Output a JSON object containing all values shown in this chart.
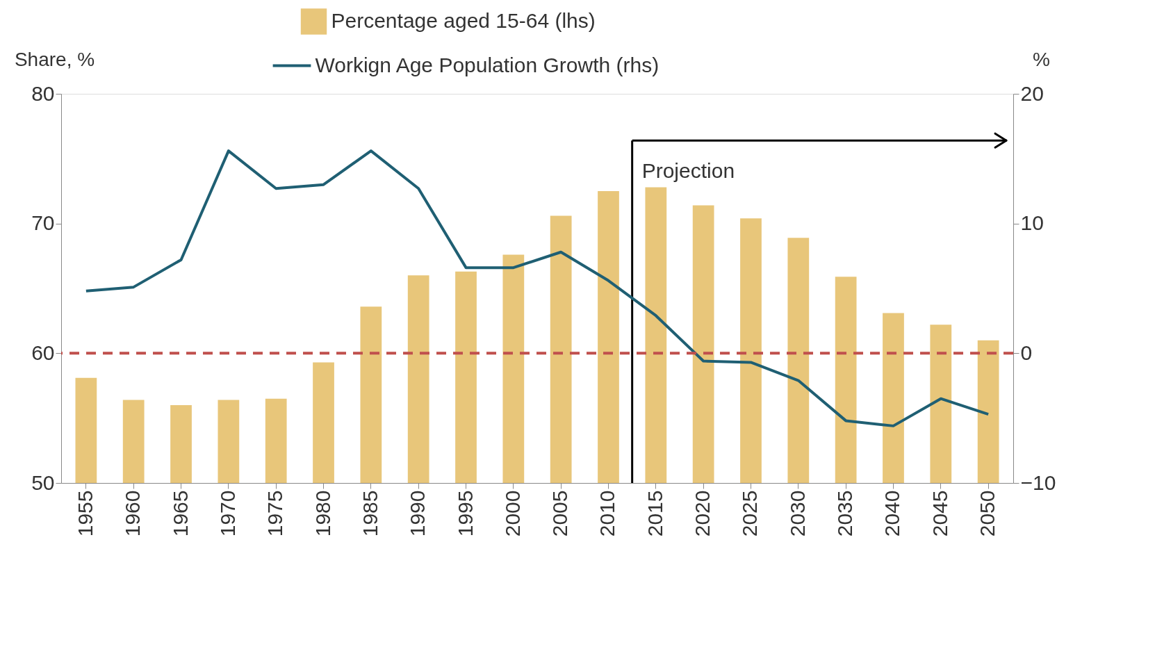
{
  "chart_data": {
    "type": "bar",
    "ylabel": "Share, %",
    "y2label": "%",
    "categories": [
      "1955",
      "1960",
      "1965",
      "1970",
      "1975",
      "1980",
      "1985",
      "1990",
      "1995",
      "2000",
      "2005",
      "2010",
      "2015",
      "2020",
      "2025",
      "2030",
      "2035",
      "2040",
      "2045",
      "2050"
    ],
    "series": [
      {
        "name": "Percentage aged 15-64 (lhs)",
        "type": "bar",
        "color": "#e8c67a",
        "values": [
          58.1,
          56.4,
          56.0,
          56.4,
          56.5,
          59.3,
          63.6,
          66.0,
          66.3,
          67.6,
          70.6,
          72.5,
          72.8,
          71.4,
          70.4,
          68.9,
          65.9,
          63.1,
          62.2,
          61.0
        ]
      },
      {
        "name": "Workign Age Population Growth (rhs)",
        "type": "line",
        "axis": "y2",
        "color": "#1f5f73",
        "values": [
          4.8,
          5.1,
          7.2,
          15.6,
          12.7,
          13.0,
          15.6,
          12.7,
          6.6,
          6.6,
          7.8,
          5.6,
          2.9,
          -0.6,
          -0.7,
          -2.1,
          -5.2,
          -5.6,
          -3.5,
          -4.7
        ]
      }
    ],
    "ylim": [
      50,
      80
    ],
    "yticks": [
      50,
      60,
      70,
      80
    ],
    "y2lim": [
      -10,
      20
    ],
    "y2ticks": [
      -10,
      0,
      10,
      20
    ],
    "ref_lines": [
      {
        "axis": "y2",
        "value": 0,
        "color": "#c0504d",
        "line_style": "dashed"
      },
      {
        "axis": "x",
        "value": "2015",
        "label": "Projection",
        "color": "#000000"
      }
    ],
    "grid": false,
    "legend": "top"
  }
}
